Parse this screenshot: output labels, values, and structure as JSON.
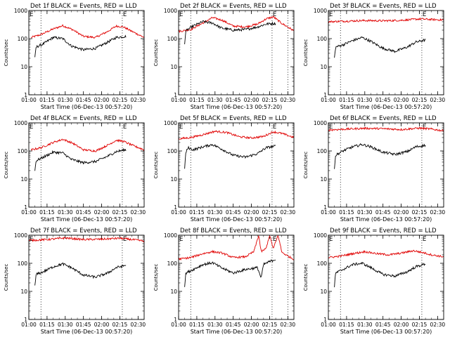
{
  "window": {
    "width_hint": "640x480 grid of 9 IDL-style detector lightcurve panels"
  },
  "colors": {
    "events": "#000000",
    "lld": "#e00000",
    "axis": "#000000",
    "background": "#ffffff"
  },
  "chart_data": [
    {
      "type": "line",
      "title": "Det 1f BLACK = Events, RED = LLD",
      "xlabel": "Start Time (06-Dec-13 00:57:20)",
      "ylabel": "Counts/sec",
      "y_scale": "log",
      "ylim": [
        1,
        1000
      ],
      "xlim": [
        "01:00",
        "02:35"
      ],
      "x_ticks": [
        "01:00",
        "01:15",
        "01:30",
        "01:45",
        "02:00",
        "02:15",
        "02:30"
      ],
      "y_ticks": [
        "1",
        "10",
        "100",
        "1000"
      ],
      "markers": [
        {
          "label": "E",
          "x": "01:00"
        },
        {
          "label": "E",
          "x": "02:17"
        }
      ],
      "dotted_lines": [
        "01:10",
        "02:17"
      ],
      "series": [
        {
          "color": "lld",
          "start": "01:02",
          "end": "02:35",
          "x": [
            "01:02",
            "01:10",
            "01:20",
            "01:28",
            "01:36",
            "01:45",
            "01:55",
            "02:05",
            "02:12",
            "02:18",
            "02:25",
            "02:35"
          ],
          "y": [
            110,
            140,
            220,
            290,
            210,
            120,
            110,
            180,
            280,
            260,
            180,
            110
          ]
        },
        {
          "color": "events",
          "start": "01:05",
          "end": "02:20",
          "x": [
            "01:05",
            "01:06",
            "01:12",
            "01:20",
            "01:28",
            "01:35",
            "01:45",
            "01:55",
            "02:05",
            "02:12",
            "02:20"
          ],
          "y": [
            20,
            50,
            65,
            110,
            100,
            55,
            40,
            45,
            75,
            110,
            120
          ]
        }
      ]
    },
    {
      "type": "line",
      "title": "Det 2f BLACK = Events, RED = LLD",
      "xlabel": "Start Time (06-Dec-13 00:57:20)",
      "ylabel": "Counts/sec",
      "y_scale": "log",
      "ylim": [
        1,
        1000
      ],
      "xlim": [
        "01:00",
        "02:35"
      ],
      "x_ticks": [
        "01:00",
        "01:15",
        "01:30",
        "01:45",
        "02:00",
        "02:15",
        "02:30"
      ],
      "y_ticks": [
        "1",
        "10",
        "100",
        "1000"
      ],
      "markers": [
        {
          "label": "E",
          "x": "01:00"
        },
        {
          "label": "E",
          "x": "02:17"
        }
      ],
      "dotted_lines": [
        "01:10",
        "02:17",
        "02:30"
      ],
      "series": [
        {
          "color": "lld",
          "start": "01:00",
          "end": "02:35",
          "x": [
            "01:00",
            "01:10",
            "01:20",
            "01:28",
            "01:36",
            "01:45",
            "01:55",
            "02:05",
            "02:12",
            "02:18",
            "02:25",
            "02:35"
          ],
          "y": [
            180,
            210,
            360,
            560,
            450,
            280,
            260,
            330,
            500,
            600,
            350,
            190
          ]
        },
        {
          "color": "events",
          "start": "01:05",
          "end": "02:20",
          "x": [
            "01:05",
            "01:06",
            "01:12",
            "01:20",
            "01:28",
            "01:35",
            "01:45",
            "01:55",
            "02:05",
            "02:12",
            "02:20"
          ],
          "y": [
            70,
            190,
            280,
            400,
            360,
            240,
            200,
            210,
            260,
            330,
            350
          ]
        }
      ]
    },
    {
      "type": "line",
      "title": "Det 3f BLACK = Events, RED = LLD",
      "xlabel": "Start Time (06-Dec-13 00:57:20)",
      "ylabel": "Counts/sec",
      "y_scale": "log",
      "ylim": [
        1,
        1000
      ],
      "xlim": [
        "01:00",
        "02:35"
      ],
      "x_ticks": [
        "01:00",
        "01:15",
        "01:30",
        "01:45",
        "02:00",
        "02:15",
        "02:30"
      ],
      "y_ticks": [
        "1",
        "10",
        "100",
        "1000"
      ],
      "markers": [
        {
          "label": "E",
          "x": "01:00"
        },
        {
          "label": "E",
          "x": "02:17"
        }
      ],
      "dotted_lines": [
        "01:10",
        "02:17"
      ],
      "series": [
        {
          "color": "lld",
          "start": "01:00",
          "end": "02:35",
          "x": [
            "01:00",
            "01:15",
            "01:30",
            "01:45",
            "02:00",
            "02:15",
            "02:25",
            "02:35"
          ],
          "y": [
            400,
            420,
            440,
            430,
            450,
            500,
            480,
            460
          ]
        },
        {
          "color": "events",
          "start": "01:05",
          "end": "02:20",
          "x": [
            "01:05",
            "01:06",
            "01:12",
            "01:20",
            "01:28",
            "01:35",
            "01:45",
            "01:55",
            "02:05",
            "02:12",
            "02:20"
          ],
          "y": [
            20,
            50,
            60,
            85,
            110,
            80,
            45,
            35,
            50,
            75,
            90
          ]
        }
      ]
    },
    {
      "type": "line",
      "title": "Det 4f BLACK = Events, RED = LLD",
      "xlabel": "Start Time (06-Dec-13 00:57:20)",
      "ylabel": "Counts/sec",
      "y_scale": "log",
      "ylim": [
        1,
        1000
      ],
      "xlim": [
        "01:00",
        "02:35"
      ],
      "x_ticks": [
        "01:00",
        "01:15",
        "01:30",
        "01:45",
        "02:00",
        "02:15",
        "02:30"
      ],
      "y_ticks": [
        "1",
        "10",
        "100",
        "1000"
      ],
      "markers": [
        {
          "label": "E",
          "x": "01:00"
        },
        {
          "label": "E",
          "x": "02:17"
        }
      ],
      "dotted_lines": [
        "01:10",
        "02:17"
      ],
      "series": [
        {
          "color": "lld",
          "start": "01:02",
          "end": "02:35",
          "x": [
            "01:02",
            "01:10",
            "01:20",
            "01:28",
            "01:36",
            "01:45",
            "01:55",
            "02:05",
            "02:12",
            "02:18",
            "02:25",
            "02:35"
          ],
          "y": [
            110,
            130,
            200,
            260,
            190,
            110,
            100,
            160,
            240,
            220,
            160,
            110
          ]
        },
        {
          "color": "events",
          "start": "01:05",
          "end": "02:20",
          "x": [
            "01:05",
            "01:06",
            "01:12",
            "01:20",
            "01:28",
            "01:35",
            "01:45",
            "01:55",
            "02:05",
            "02:12",
            "02:20"
          ],
          "y": [
            20,
            45,
            60,
            90,
            85,
            50,
            38,
            42,
            65,
            95,
            110
          ]
        }
      ]
    },
    {
      "type": "line",
      "title": "Det 5f BLACK = Events, RED = LLD",
      "xlabel": "Start Time (06-Dec-13 00:57:20)",
      "ylabel": "Counts/sec",
      "y_scale": "log",
      "ylim": [
        1,
        1000
      ],
      "xlim": [
        "01:00",
        "02:35"
      ],
      "x_ticks": [
        "01:00",
        "01:15",
        "01:30",
        "01:45",
        "02:00",
        "02:15",
        "02:30"
      ],
      "y_ticks": [
        "1",
        "10",
        "100",
        "1000"
      ],
      "markers": [
        {
          "label": "E",
          "x": "01:00"
        },
        {
          "label": "E",
          "x": "02:17"
        }
      ],
      "dotted_lines": [
        "01:10",
        "02:17"
      ],
      "series": [
        {
          "color": "lld",
          "start": "01:00",
          "end": "02:35",
          "x": [
            "01:00",
            "01:10",
            "01:20",
            "01:30",
            "01:40",
            "01:50",
            "02:00",
            "02:10",
            "02:18",
            "02:25",
            "02:35"
          ],
          "y": [
            270,
            300,
            380,
            500,
            450,
            320,
            290,
            330,
            480,
            420,
            300
          ]
        },
        {
          "color": "events",
          "start": "01:05",
          "end": "02:20",
          "x": [
            "01:05",
            "01:06",
            "01:08",
            "01:12",
            "01:20",
            "01:28",
            "01:35",
            "01:45",
            "01:55",
            "02:05",
            "02:12",
            "02:20"
          ],
          "y": [
            25,
            90,
            130,
            110,
            140,
            170,
            120,
            70,
            60,
            80,
            130,
            150
          ]
        }
      ]
    },
    {
      "type": "line",
      "title": "Det 6f BLACK = Events, RED = LLD",
      "xlabel": "Start Time (06-Dec-13 00:57:20)",
      "ylabel": "Counts/sec",
      "y_scale": "log",
      "ylim": [
        1,
        1000
      ],
      "xlim": [
        "01:00",
        "02:35"
      ],
      "x_ticks": [
        "01:00",
        "01:15",
        "01:30",
        "01:45",
        "02:00",
        "02:15",
        "02:30"
      ],
      "y_ticks": [
        "1",
        "10",
        "100",
        "1000"
      ],
      "markers": [
        {
          "label": "E",
          "x": "01:00"
        },
        {
          "label": "E",
          "x": "02:17"
        }
      ],
      "dotted_lines": [
        "01:10",
        "02:17"
      ],
      "series": [
        {
          "color": "lld",
          "start": "01:00",
          "end": "02:35",
          "x": [
            "01:00",
            "01:15",
            "01:30",
            "01:45",
            "02:00",
            "02:15",
            "02:25",
            "02:35"
          ],
          "y": [
            560,
            600,
            640,
            620,
            580,
            650,
            600,
            520
          ]
        },
        {
          "color": "events",
          "start": "01:05",
          "end": "02:20",
          "x": [
            "01:05",
            "01:06",
            "01:12",
            "01:20",
            "01:28",
            "01:35",
            "01:45",
            "01:55",
            "02:05",
            "02:12",
            "02:20"
          ],
          "y": [
            25,
            70,
            100,
            140,
            170,
            140,
            90,
            75,
            95,
            140,
            160
          ]
        }
      ]
    },
    {
      "type": "line",
      "title": "Det 7f BLACK = Events, RED = LLD",
      "xlabel": "Start Time (06-Dec-13 00:57:20)",
      "ylabel": "Counts/sec",
      "y_scale": "log",
      "ylim": [
        1,
        1000
      ],
      "xlim": [
        "01:00",
        "02:35"
      ],
      "x_ticks": [
        "01:00",
        "01:15",
        "01:30",
        "01:45",
        "02:00",
        "02:15",
        "02:30"
      ],
      "y_ticks": [
        "1",
        "10",
        "100",
        "1000"
      ],
      "markers": [
        {
          "label": "E",
          "x": "01:00"
        },
        {
          "label": "E",
          "x": "02:17"
        }
      ],
      "dotted_lines": [
        "01:10",
        "02:17"
      ],
      "series": [
        {
          "color": "lld",
          "start": "01:00",
          "end": "02:35",
          "x": [
            "01:00",
            "01:15",
            "01:30",
            "01:45",
            "02:00",
            "02:15",
            "02:25",
            "02:35"
          ],
          "y": [
            650,
            700,
            800,
            700,
            720,
            780,
            700,
            620
          ]
        },
        {
          "color": "events",
          "start": "01:05",
          "end": "02:20",
          "x": [
            "01:05",
            "01:06",
            "01:12",
            "01:20",
            "01:28",
            "01:35",
            "01:45",
            "01:55",
            "02:05",
            "02:12",
            "02:20"
          ],
          "y": [
            15,
            40,
            50,
            75,
            95,
            70,
            38,
            32,
            45,
            70,
            85
          ]
        }
      ]
    },
    {
      "type": "line",
      "title": "Det 8f BLACK = Events, RED = LLD",
      "xlabel": "Start Time (06-Dec-13 00:57:20)",
      "ylabel": "Counts/sec",
      "y_scale": "log",
      "ylim": [
        1,
        1000
      ],
      "xlim": [
        "01:00",
        "02:35"
      ],
      "x_ticks": [
        "01:00",
        "01:15",
        "01:30",
        "01:45",
        "02:00",
        "02:15",
        "02:30"
      ],
      "y_ticks": [
        "1",
        "10",
        "100",
        "1000"
      ],
      "markers": [
        {
          "label": "E",
          "x": "01:00"
        },
        {
          "label": "E",
          "x": "02:17"
        }
      ],
      "dotted_lines": [
        "01:10",
        "02:17",
        "02:30"
      ],
      "series": [
        {
          "color": "lld",
          "start": "01:00",
          "end": "02:35",
          "x": [
            "01:00",
            "01:10",
            "01:20",
            "01:28",
            "01:36",
            "01:45",
            "01:55",
            "02:02",
            "02:06",
            "02:08",
            "02:12",
            "02:15",
            "02:18",
            "02:22",
            "02:25",
            "02:30",
            "02:35"
          ],
          "y": [
            140,
            160,
            220,
            260,
            230,
            160,
            170,
            260,
            1000,
            260,
            330,
            1000,
            330,
            1000,
            250,
            180,
            140
          ]
        },
        {
          "color": "events",
          "start": "01:05",
          "end": "02:20",
          "x": [
            "01:05",
            "01:06",
            "01:12",
            "01:20",
            "01:28",
            "01:35",
            "01:45",
            "01:55",
            "02:05",
            "02:08",
            "02:10",
            "02:14",
            "02:20"
          ],
          "y": [
            15,
            45,
            60,
            90,
            105,
            70,
            45,
            60,
            70,
            30,
            90,
            110,
            140
          ]
        }
      ]
    },
    {
      "type": "line",
      "title": "Det 9f BLACK = Events, RED = LLD",
      "xlabel": "Start Time (06-Dec-13 00:57:20)",
      "ylabel": "Counts/sec",
      "y_scale": "log",
      "ylim": [
        1,
        1000
      ],
      "xlim": [
        "01:00",
        "02:35"
      ],
      "x_ticks": [
        "01:00",
        "01:15",
        "01:30",
        "01:45",
        "02:00",
        "02:15",
        "02:30"
      ],
      "y_ticks": [
        "1",
        "10",
        "100",
        "1000"
      ],
      "markers": [
        {
          "label": "E",
          "x": "01:00"
        },
        {
          "label": "E",
          "x": "02:17"
        }
      ],
      "dotted_lines": [
        "01:10",
        "02:17"
      ],
      "series": [
        {
          "color": "lld",
          "start": "01:00",
          "end": "02:35",
          "x": [
            "01:00",
            "01:10",
            "01:20",
            "01:30",
            "01:40",
            "01:50",
            "02:00",
            "02:10",
            "02:18",
            "02:25",
            "02:35"
          ],
          "y": [
            160,
            180,
            220,
            260,
            220,
            200,
            230,
            280,
            240,
            200,
            170
          ]
        },
        {
          "color": "events",
          "start": "01:05",
          "end": "02:20",
          "x": [
            "01:05",
            "01:06",
            "01:12",
            "01:20",
            "01:28",
            "01:35",
            "01:45",
            "01:55",
            "02:05",
            "02:12",
            "02:20"
          ],
          "y": [
            15,
            45,
            60,
            90,
            100,
            70,
            40,
            35,
            50,
            75,
            95
          ]
        }
      ]
    }
  ]
}
